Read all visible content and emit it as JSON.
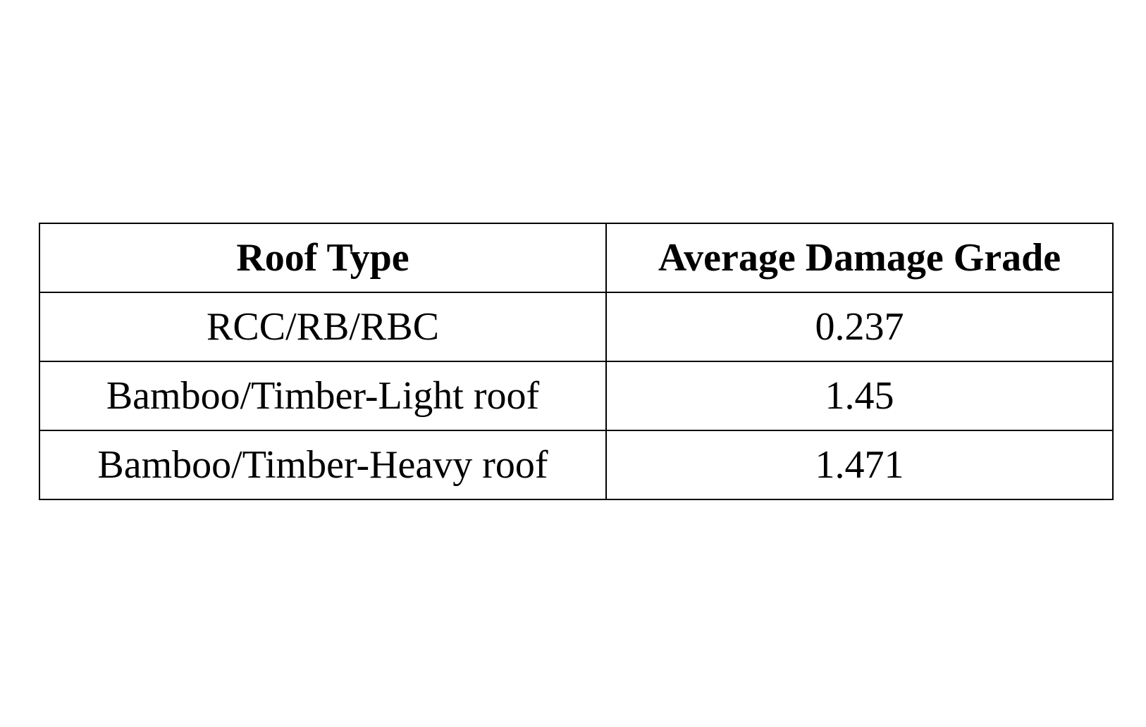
{
  "table": {
    "headers": [
      "Roof Type",
      "Average Damage Grade"
    ],
    "rows": [
      [
        "RCC/RB/RBC",
        "0.237"
      ],
      [
        "Bamboo/Timber-Light roof",
        "1.45"
      ],
      [
        "Bamboo/Timber-Heavy roof",
        "1.471"
      ]
    ]
  }
}
